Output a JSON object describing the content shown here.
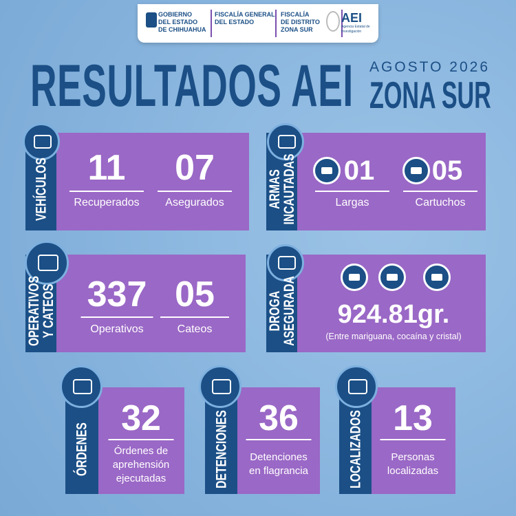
{
  "header": {
    "logos": [
      [
        "GOBIERNO",
        "DEL ESTADO",
        "DE CHIHUAHUA"
      ],
      [
        "FISCALÍA GENERAL",
        "DEL ESTADO"
      ],
      [
        "FISCALÍA",
        "DE DISTRITO",
        "ZONA SUR"
      ],
      [
        "AEI",
        "Agencia Estatal de Investigación"
      ]
    ]
  },
  "title": "RESULTADOS AEI",
  "month": "AGOSTO 2026",
  "zone": "ZONA SUR",
  "panels": [
    {
      "label": [
        "VEHÍCULOS"
      ],
      "stats": [
        {
          "value": "11",
          "label": [
            "Recuperados"
          ]
        },
        {
          "value": "07",
          "label": [
            "Asegurados"
          ]
        }
      ]
    },
    {
      "label": [
        "ARMAS",
        "INCAUTADAS"
      ],
      "stats": [
        {
          "value": "01",
          "label": [
            "Largas"
          ]
        },
        {
          "value": "05",
          "label": [
            "Cartuchos"
          ]
        }
      ]
    },
    {
      "label": [
        "OPERATIVOS",
        "Y CATEOS"
      ],
      "stats": [
        {
          "value": "337",
          "label": [
            "Operativos"
          ]
        },
        {
          "value": "05",
          "label": [
            "Cateos"
          ]
        }
      ]
    },
    {
      "label": [
        "DROGA",
        "ASEGURADA"
      ],
      "stats": [
        {
          "value": "924.81gr.",
          "label": [
            "(Entre mariguana, cocaína y cristal)"
          ]
        }
      ]
    },
    {
      "label": [
        "ÓRDENES"
      ],
      "stats": [
        {
          "value": "32",
          "label": [
            "Órdenes de",
            "aprehensión",
            "ejecutadas"
          ]
        }
      ]
    },
    {
      "label": [
        "DETENCIONES"
      ],
      "stats": [
        {
          "value": "36",
          "label": [
            "Detenciones",
            "en flagrancia"
          ]
        }
      ]
    },
    {
      "label": [
        "LOCALIZADOS"
      ],
      "stats": [
        {
          "value": "13",
          "label": [
            "Personas",
            "localizadas"
          ]
        }
      ]
    }
  ]
}
